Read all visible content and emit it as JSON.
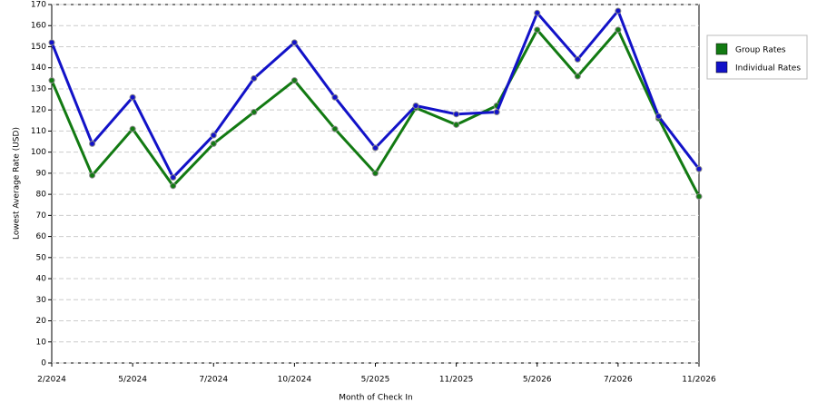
{
  "chart_data": {
    "type": "line",
    "x_label": "Month of Check In",
    "y_label": "Lowest Average Rate (USD)",
    "categories": [
      "2/2024",
      null,
      "5/2024",
      null,
      "7/2024",
      null,
      "10/2024",
      null,
      "5/2025",
      null,
      "11/2025",
      null,
      "5/2026",
      null,
      "7/2026",
      null,
      "11/2026"
    ],
    "series": [
      {
        "name": "Group Rates",
        "color": "#127a12",
        "values": [
          134,
          89,
          111,
          84,
          104,
          119,
          134,
          111,
          90,
          121,
          113,
          122,
          158,
          136,
          158,
          116,
          79
        ]
      },
      {
        "name": "Individual Rates",
        "color": "#1212c8",
        "values": [
          152,
          104,
          126,
          88,
          108,
          135,
          152,
          126,
          102,
          122,
          118,
          119,
          166,
          144,
          167,
          117,
          92
        ]
      }
    ],
    "ylim": [
      0,
      170
    ],
    "yticks": [
      0,
      10,
      20,
      30,
      40,
      50,
      60,
      70,
      80,
      90,
      100,
      110,
      120,
      130,
      140,
      150,
      160,
      170
    ],
    "grid": true,
    "legend": "right"
  }
}
